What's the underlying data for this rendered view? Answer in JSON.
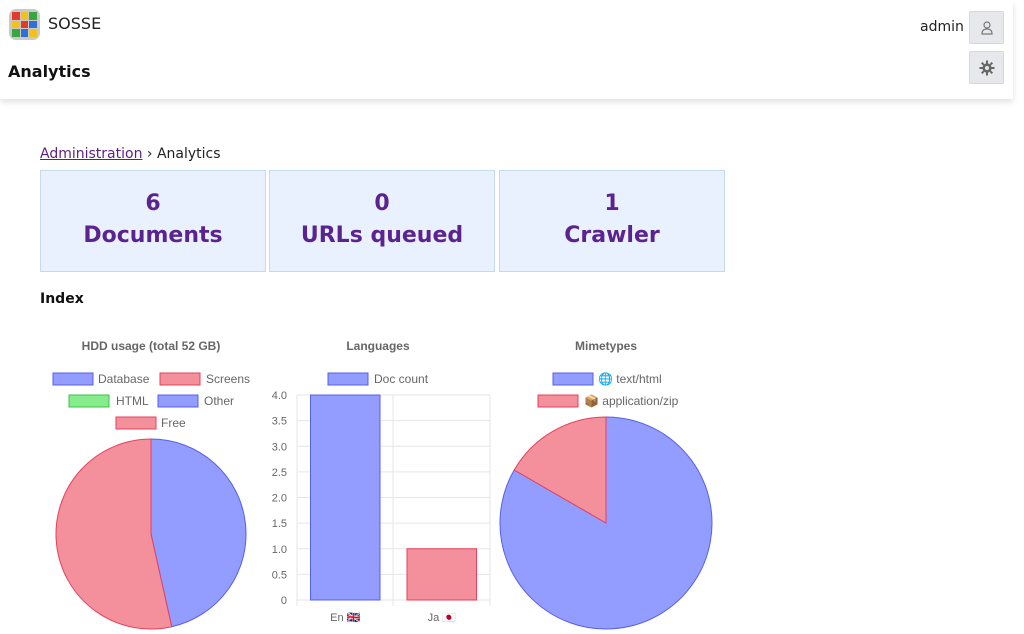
{
  "header": {
    "brand": "SOSSE",
    "page_title": "Analytics",
    "user_name": "admin"
  },
  "breadcrumb": {
    "parent_label": "Administration",
    "separator": "›",
    "current": "Analytics"
  },
  "stats": [
    {
      "value": "6",
      "label": "Documents"
    },
    {
      "value": "0",
      "label": "URLs queued"
    },
    {
      "value": "1",
      "label": "Crawler"
    }
  ],
  "section": {
    "title": "Index"
  },
  "icons": {
    "user": "user-icon",
    "settings": "gear-icon",
    "logo": "sosse-logo-icon",
    "globe": "globe-icon",
    "package": "package-icon",
    "flag_en": "uk-flag-icon",
    "flag_ja": "japan-flag-icon"
  },
  "colors": {
    "blue": "#939cff",
    "blue_border": "#5560e8",
    "red": "#f3909c",
    "red_border": "#e8405a",
    "green": "#86ec8c",
    "green_border": "#38c548",
    "stat_text": "#5a2390",
    "stat_bg": "#e8f1fd"
  },
  "chart_data": [
    {
      "type": "pie",
      "title": "HDD usage (total 52 GB)",
      "legend": [
        "Database",
        "Screens",
        "HTML",
        "Other",
        "Free"
      ],
      "legend_colors": [
        "#939cff",
        "#f3909c",
        "#86ec8c",
        "#939cff",
        "#f3909c"
      ],
      "values": [
        0,
        0,
        0,
        46.5,
        53.5
      ],
      "unit": "%",
      "legend_position": "top"
    },
    {
      "type": "bar",
      "title": "Languages",
      "series": [
        {
          "name": "Doc count",
          "values": [
            4,
            1
          ]
        }
      ],
      "categories": [
        "En",
        "Ja"
      ],
      "category_flags": [
        "🇬🇧",
        "🇯🇵"
      ],
      "bar_colors": [
        "#939cff",
        "#f3909c"
      ],
      "ylim": [
        0,
        4
      ],
      "yticks": [
        "0",
        "0.5",
        "1.0",
        "1.5",
        "2.0",
        "2.5",
        "3.0",
        "3.5",
        "4.0"
      ],
      "grid": true,
      "legend_position": "top"
    },
    {
      "type": "pie",
      "title": "Mimetypes",
      "legend": [
        "🌐 text/html",
        "📦 application/zip"
      ],
      "legend_colors": [
        "#939cff",
        "#f3909c"
      ],
      "values": [
        5,
        1
      ],
      "legend_position": "top"
    }
  ]
}
